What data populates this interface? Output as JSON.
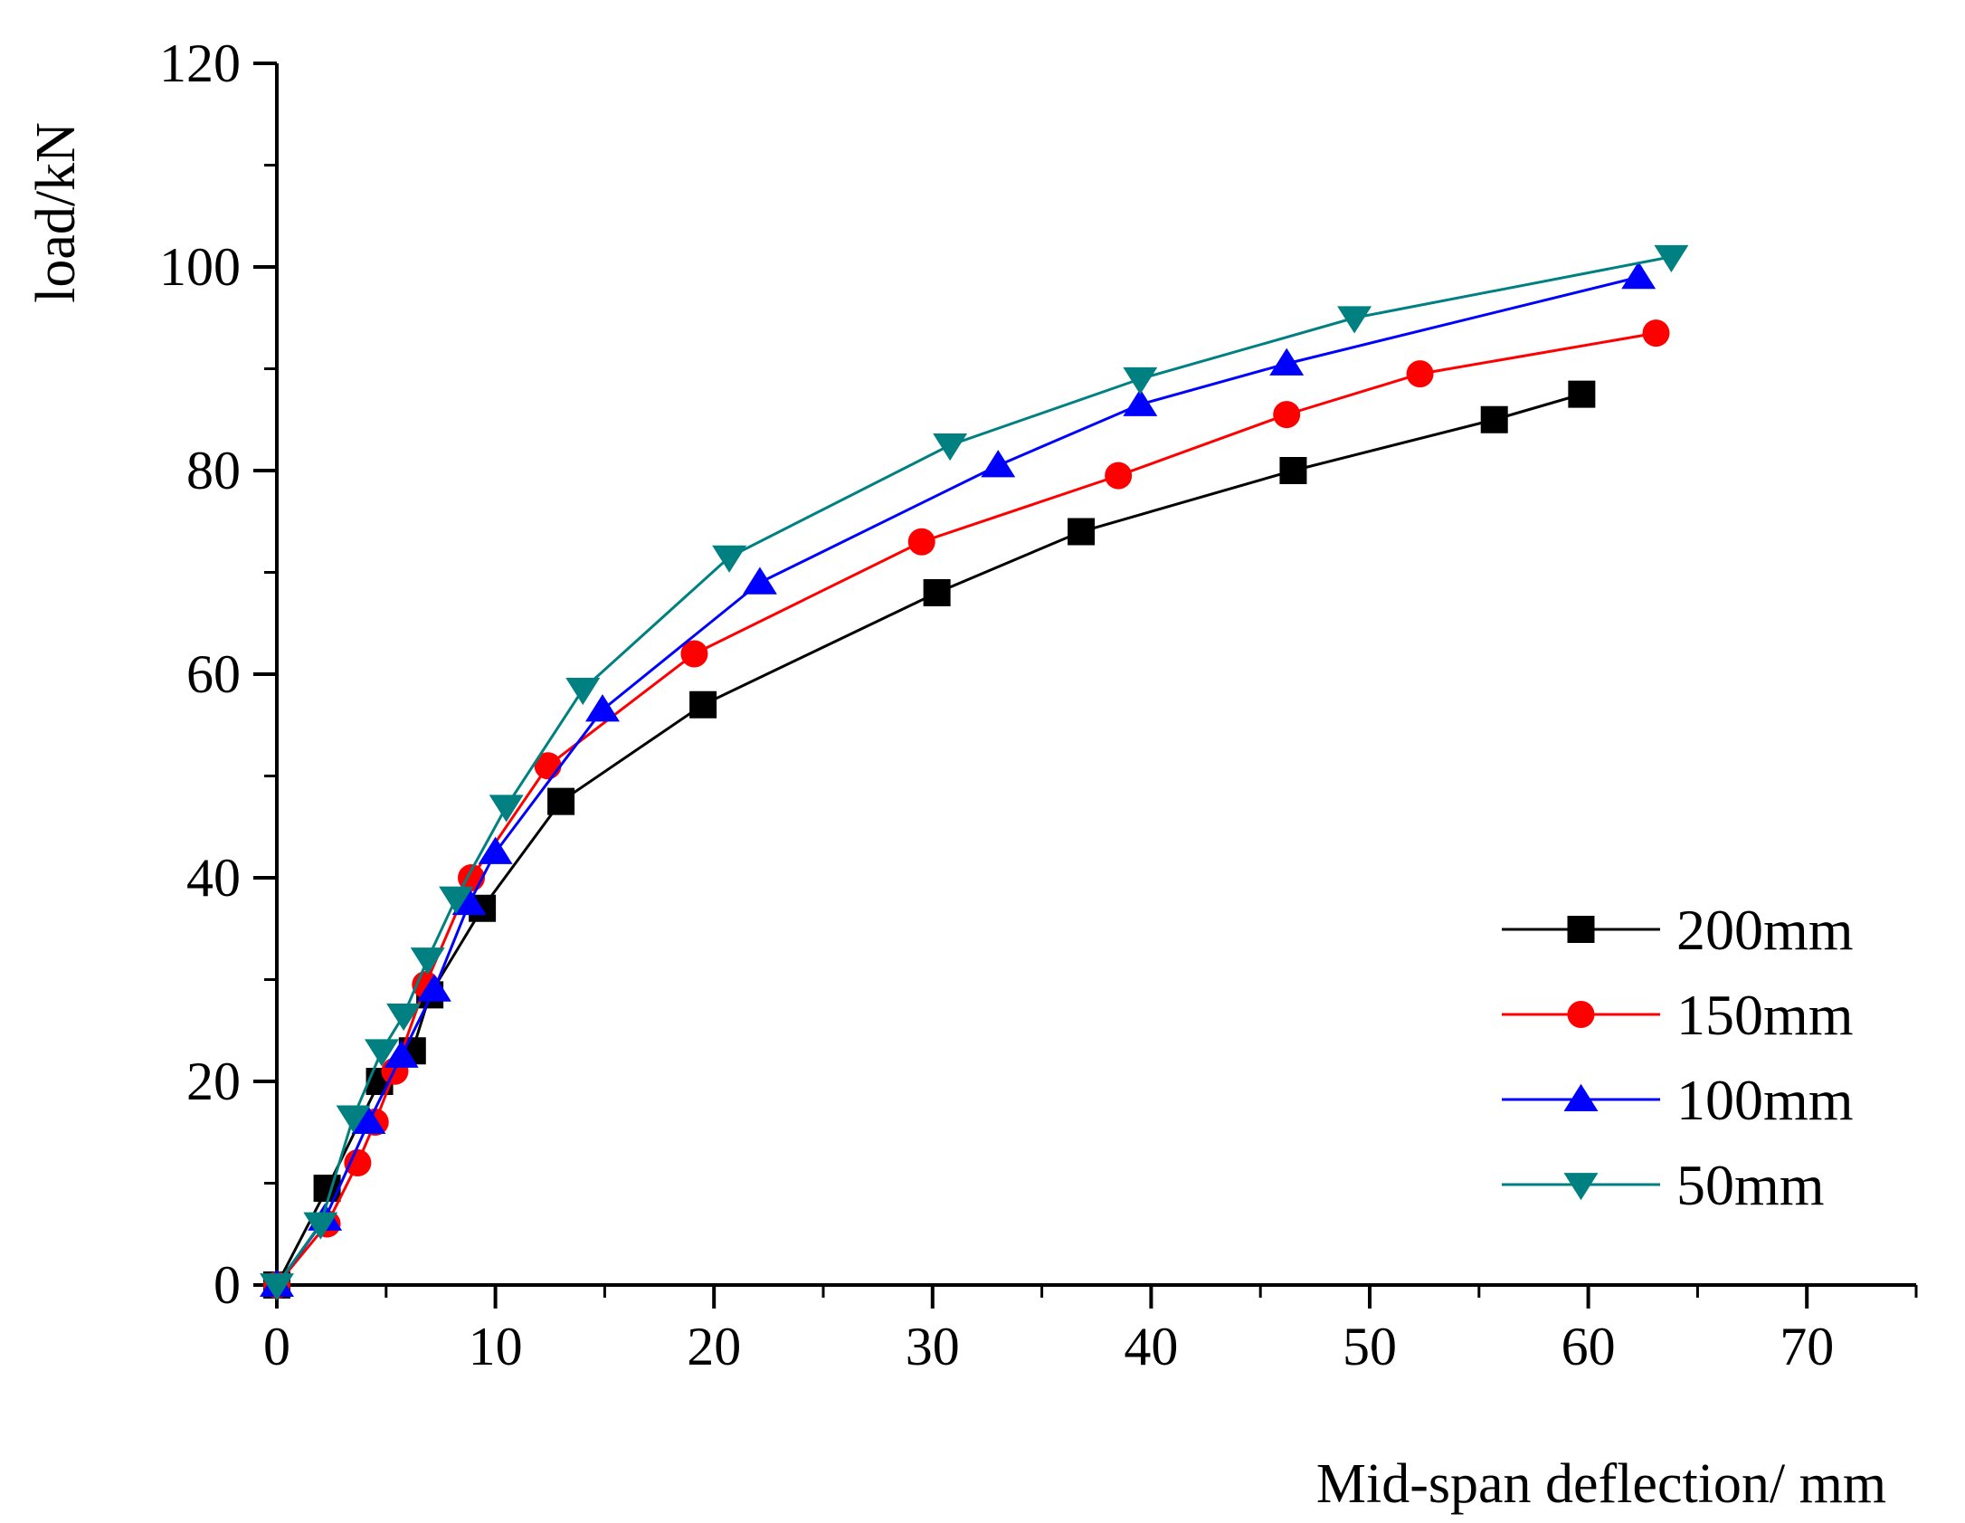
{
  "chart_data": {
    "type": "line",
    "title": "",
    "xlabel": "Mid-span deflection/ mm",
    "ylabel": "load/kN",
    "xlim": [
      0,
      75
    ],
    "ylim": [
      0,
      120
    ],
    "x_ticks": [
      0,
      10,
      20,
      30,
      40,
      50,
      60,
      70
    ],
    "y_ticks": [
      0,
      20,
      40,
      60,
      80,
      100,
      120
    ],
    "grid": false,
    "legend_position": "bottom-right",
    "series": [
      {
        "name": "200mm",
        "color": "#000000",
        "marker": "square",
        "x": [
          0,
          2.3,
          4.7,
          6.2,
          7.0,
          9.4,
          13.0,
          19.5,
          30.2,
          36.8,
          46.5,
          55.7,
          59.7
        ],
        "y": [
          0,
          9.5,
          20,
          23,
          28.5,
          37,
          47.5,
          57,
          68,
          74,
          80,
          85,
          87.5
        ]
      },
      {
        "name": "150mm",
        "color": "#ff0000",
        "marker": "circle",
        "x": [
          0,
          2.3,
          3.7,
          4.5,
          5.4,
          6.8,
          8.9,
          12.4,
          19.1,
          29.5,
          38.5,
          46.2,
          52.3,
          63.1
        ],
        "y": [
          0,
          6,
          12,
          16,
          21,
          29.5,
          40,
          51,
          62,
          73,
          79.5,
          85.5,
          89.5,
          93.5
        ]
      },
      {
        "name": "100mm",
        "color": "#0000ff",
        "marker": "triangle-up",
        "x": [
          0,
          2.2,
          4.2,
          5.7,
          7.2,
          8.8,
          10.0,
          14.9,
          22.1,
          33.0,
          39.5,
          46.2,
          62.3
        ],
        "y": [
          0,
          6.5,
          16,
          22.5,
          29,
          37.5,
          42.5,
          56.5,
          69,
          80.5,
          86.5,
          90.5,
          99
        ]
      },
      {
        "name": "50mm",
        "color": "#008080",
        "marker": "triangle-down",
        "x": [
          0,
          2.0,
          3.5,
          4.8,
          5.8,
          6.9,
          8.2,
          10.5,
          14.0,
          20.7,
          30.8,
          39.5,
          49.3,
          63.8
        ],
        "y": [
          0,
          6,
          16.5,
          23,
          26.5,
          32,
          38,
          47,
          58.5,
          71.5,
          82.5,
          89,
          95,
          101
        ]
      }
    ]
  }
}
